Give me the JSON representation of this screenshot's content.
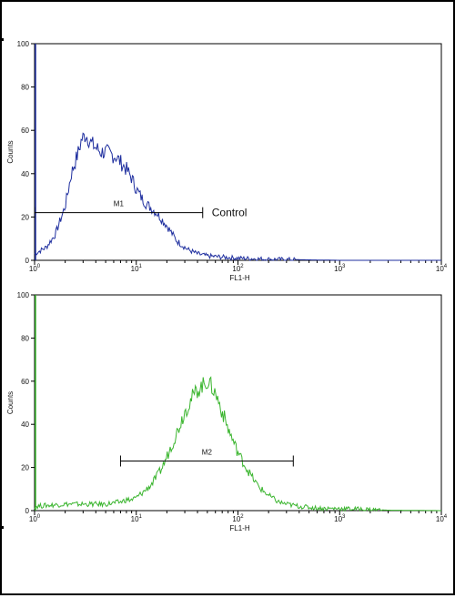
{
  "chart_data": [
    {
      "type": "line",
      "title": "",
      "xlabel": "FL1-H",
      "ylabel": "Counts",
      "x_scale": "log",
      "xlim": [
        1,
        10000
      ],
      "ylim": [
        0,
        100
      ],
      "x_ticks": [
        {
          "value": 1,
          "base": "10",
          "exp": "0"
        },
        {
          "value": 10,
          "base": "10",
          "exp": "1"
        },
        {
          "value": 100,
          "base": "10",
          "exp": "2"
        },
        {
          "value": 1000,
          "base": "10",
          "exp": "3"
        },
        {
          "value": 10000,
          "base": "10",
          "exp": "4"
        }
      ],
      "y_ticks": [
        "0",
        "20",
        "40",
        "60",
        "80",
        "100"
      ],
      "series": [
        {
          "color": "#1f2f9f",
          "x": [
            1.0,
            1.3,
            1.6,
            2.0,
            2.3,
            2.7,
            2.9,
            3.2,
            3.6,
            4.0,
            4.5,
            5.0,
            5.6,
            6.3,
            7.1,
            8.0,
            9.0,
            10,
            11.2,
            12.6,
            14.1,
            15.8,
            17.8,
            20,
            25,
            32,
            40,
            50,
            70,
            100,
            200,
            500,
            1000,
            10000
          ],
          "y": [
            3,
            6,
            12,
            25,
            40,
            50,
            56,
            58,
            54,
            52,
            50,
            50,
            49,
            48,
            45,
            42,
            38,
            33,
            29,
            26,
            24,
            22,
            19,
            16,
            9,
            5,
            3,
            2,
            1.5,
            1,
            0.5,
            0.2,
            0,
            0
          ]
        }
      ],
      "markers": [
        {
          "label": "M1",
          "x_start": 1,
          "x_end": 45,
          "y": 22,
          "annotation": "Control"
        }
      ]
    },
    {
      "type": "line",
      "title": "",
      "xlabel": "FL1-H",
      "ylabel": "Counts",
      "x_scale": "log",
      "xlim": [
        1,
        10000
      ],
      "ylim": [
        0,
        100
      ],
      "x_ticks": [
        {
          "value": 1,
          "base": "10",
          "exp": "0"
        },
        {
          "value": 10,
          "base": "10",
          "exp": "1"
        },
        {
          "value": 100,
          "base": "10",
          "exp": "2"
        },
        {
          "value": 1000,
          "base": "10",
          "exp": "3"
        },
        {
          "value": 10000,
          "base": "10",
          "exp": "4"
        }
      ],
      "y_ticks": [
        "0",
        "20",
        "40",
        "60",
        "80",
        "100"
      ],
      "series": [
        {
          "color": "#3ab52e",
          "x": [
            1.0,
            2.0,
            3.0,
            5.0,
            7.0,
            8.0,
            9.0,
            10,
            12,
            14,
            16,
            18,
            20,
            25,
            30,
            35,
            40,
            45,
            50,
            56,
            63,
            71,
            80,
            90,
            100,
            120,
            140,
            160,
            200,
            250,
            300,
            400,
            500,
            700,
            1000,
            2000,
            3000,
            10000
          ],
          "y": [
            2,
            3,
            3,
            3,
            4,
            5,
            5,
            6,
            9,
            12,
            16,
            20,
            25,
            36,
            46,
            52,
            56,
            58,
            60,
            57,
            52,
            45,
            38,
            32,
            27,
            20,
            15,
            11,
            7,
            4,
            3,
            2,
            1.5,
            1,
            1,
            0.5,
            0.2,
            0
          ]
        }
      ],
      "markers": [
        {
          "label": "M2",
          "x_start": 7,
          "x_end": 350,
          "y": 23,
          "annotation": ""
        }
      ]
    }
  ]
}
